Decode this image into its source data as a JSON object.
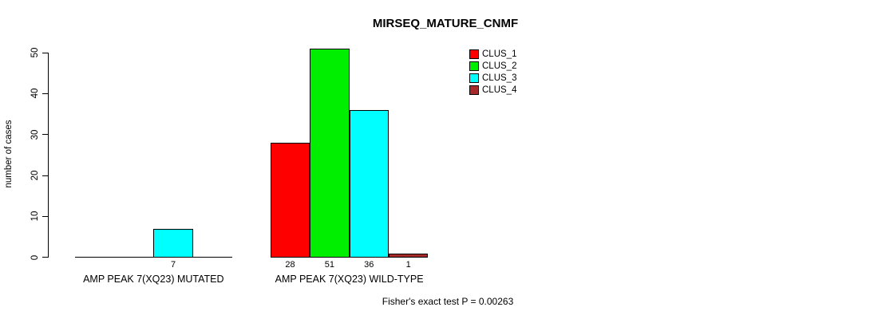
{
  "chart_data": {
    "type": "bar",
    "title": "MIRSEQ_MATURE_CNMF",
    "ylabel": "number of cases",
    "xlabel": "",
    "ylim": [
      0,
      50
    ],
    "yticks": [
      0,
      10,
      20,
      30,
      40,
      50
    ],
    "grid": false,
    "legend_position": "top-right",
    "categories": [
      "AMP PEAK 7(XQ23) MUTATED",
      "AMP PEAK 7(XQ23) WILD-TYPE"
    ],
    "series": [
      {
        "name": "CLUS_1",
        "color": "#ff0000",
        "values": [
          0,
          28
        ]
      },
      {
        "name": "CLUS_2",
        "color": "#00ee00",
        "values": [
          0,
          51
        ]
      },
      {
        "name": "CLUS_3",
        "color": "#00ffff",
        "values": [
          7,
          36
        ]
      },
      {
        "name": "CLUS_4",
        "color": "#a52a2a",
        "values": [
          0,
          1
        ]
      }
    ],
    "bar_value_labels": {
      "shown_only_when_positive": true
    },
    "annotation": "Fisher's exact test P = 0.00263"
  },
  "colors": {
    "background": "#ffffff",
    "axis": "#000000",
    "text": "#000000"
  }
}
